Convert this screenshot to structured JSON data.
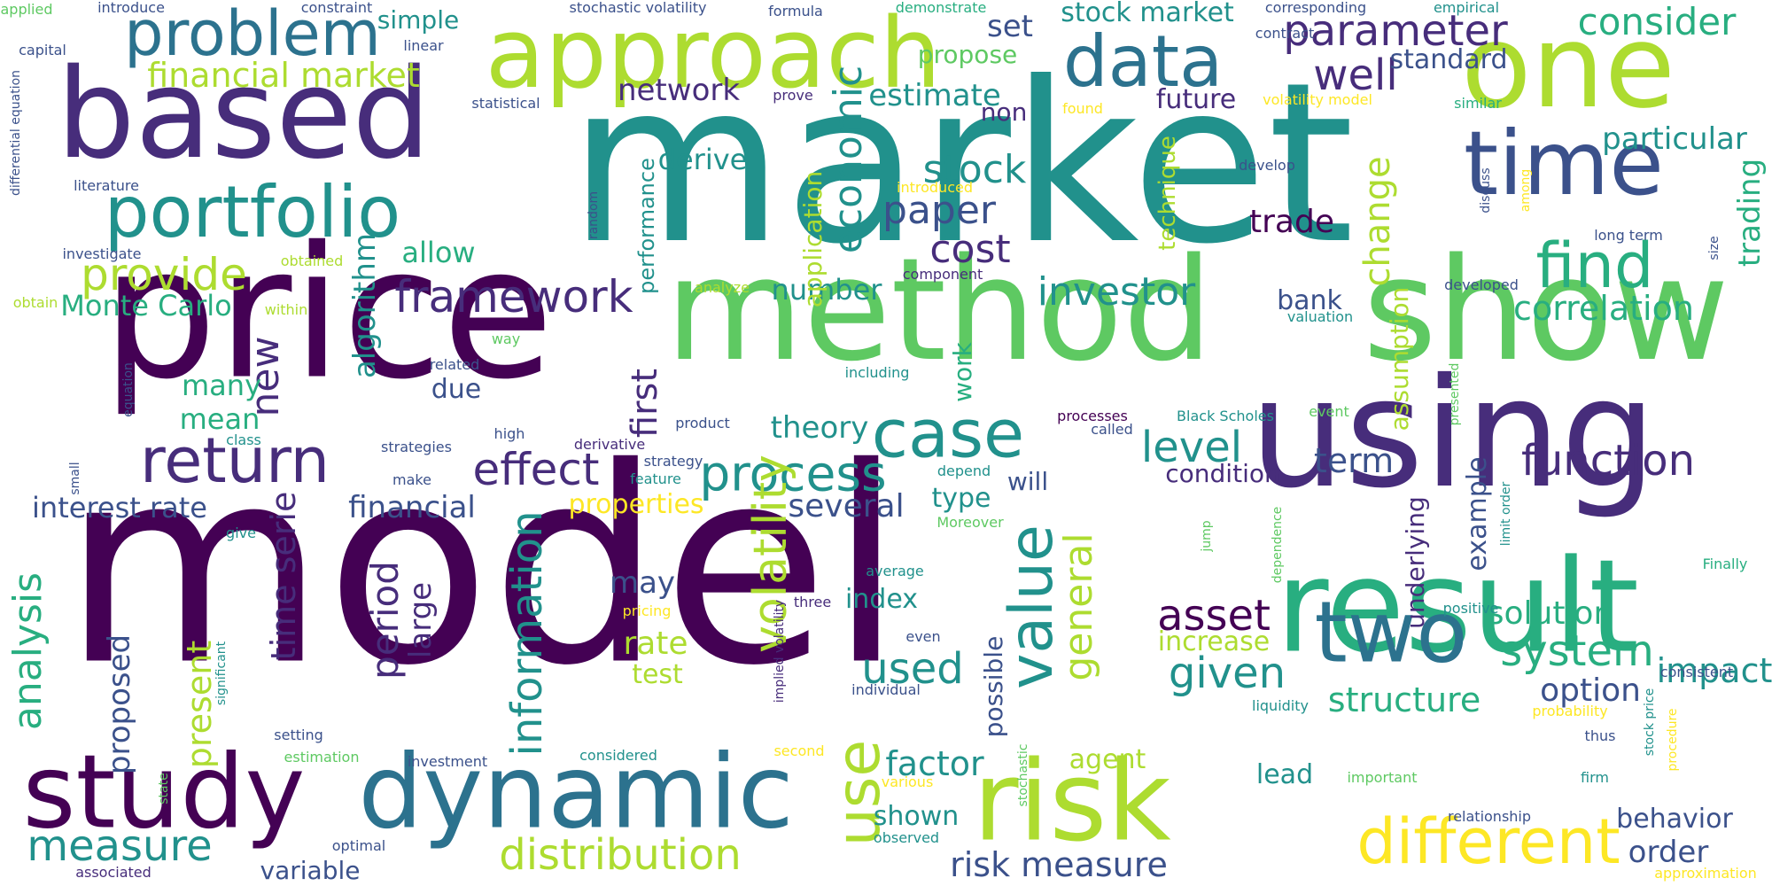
{
  "palette": {
    "background": "#ffffff",
    "deep_purple": "#440154",
    "purple": "#472d7b",
    "indigo": "#3b518b",
    "blue": "#2c728e",
    "teal": "#21918c",
    "green": "#28ae80",
    "light_green": "#5ec962",
    "lime": "#addc30",
    "yellow": "#fde725"
  },
  "words": [
    {
      "text": "model",
      "color": "deep_purple"
    },
    {
      "text": "market",
      "color": "teal"
    },
    {
      "text": "price",
      "color": "deep_purple"
    },
    {
      "text": "method",
      "color": "light_green"
    },
    {
      "text": "show",
      "color": "light_green"
    },
    {
      "text": "using",
      "color": "purple"
    },
    {
      "text": "result",
      "color": "green"
    },
    {
      "text": "based",
      "color": "purple"
    },
    {
      "text": "approach",
      "color": "lime"
    },
    {
      "text": "one",
      "color": "lime"
    },
    {
      "text": "time",
      "color": "indigo"
    },
    {
      "text": "portfolio",
      "color": "teal"
    },
    {
      "text": "problem",
      "color": "blue"
    },
    {
      "text": "data",
      "color": "blue"
    },
    {
      "text": "study",
      "color": "deep_purple"
    },
    {
      "text": "dynamic",
      "color": "blue"
    },
    {
      "text": "risk",
      "color": "lime"
    },
    {
      "text": "two",
      "color": "blue"
    },
    {
      "text": "return",
      "color": "purple"
    },
    {
      "text": "case",
      "color": "teal"
    },
    {
      "text": "different",
      "color": "yellow"
    },
    {
      "text": "value",
      "color": "teal"
    },
    {
      "text": "find",
      "color": "green"
    },
    {
      "text": "use",
      "color": "lime"
    },
    {
      "text": "parameter",
      "color": "purple"
    },
    {
      "text": "consider",
      "color": "green"
    },
    {
      "text": "well",
      "color": "purple"
    },
    {
      "text": "financial market",
      "color": "lime"
    },
    {
      "text": "provide",
      "color": "lime"
    },
    {
      "text": "framework",
      "color": "purple"
    },
    {
      "text": "effect",
      "color": "purple"
    },
    {
      "text": "process",
      "color": "teal"
    },
    {
      "text": "function",
      "color": "purple"
    },
    {
      "text": "volatility",
      "color": "lime"
    },
    {
      "text": "information",
      "color": "teal"
    },
    {
      "text": "distribution",
      "color": "lime"
    },
    {
      "text": "measure",
      "color": "teal"
    },
    {
      "text": "asset",
      "color": "deep_purple"
    },
    {
      "text": "system",
      "color": "green"
    },
    {
      "text": "stock",
      "color": "teal"
    },
    {
      "text": "paper",
      "color": "indigo"
    },
    {
      "text": "cost",
      "color": "purple"
    },
    {
      "text": "economic",
      "color": "teal"
    },
    {
      "text": "new",
      "color": "purple"
    },
    {
      "text": "investor",
      "color": "teal"
    },
    {
      "text": "correlation",
      "color": "green"
    },
    {
      "text": "level",
      "color": "teal"
    },
    {
      "text": "general",
      "color": "lime"
    },
    {
      "text": "given",
      "color": "teal"
    },
    {
      "text": "structure",
      "color": "green"
    },
    {
      "text": "solution",
      "color": "green"
    },
    {
      "text": "impact",
      "color": "teal"
    },
    {
      "text": "option",
      "color": "indigo"
    },
    {
      "text": "factor",
      "color": "teal"
    },
    {
      "text": "used",
      "color": "teal"
    },
    {
      "text": "analysis",
      "color": "green"
    },
    {
      "text": "time serie",
      "color": "purple"
    },
    {
      "text": "period",
      "color": "purple"
    },
    {
      "text": "interest rate",
      "color": "indigo"
    },
    {
      "text": "financial",
      "color": "indigo"
    },
    {
      "text": "risk measure",
      "color": "indigo"
    },
    {
      "text": "stock market",
      "color": "teal"
    },
    {
      "text": "estimate",
      "color": "teal"
    },
    {
      "text": "particular",
      "color": "teal"
    },
    {
      "text": "trading",
      "color": "green"
    },
    {
      "text": "change",
      "color": "lime"
    },
    {
      "text": "trade",
      "color": "deep_purple"
    },
    {
      "text": "term",
      "color": "indigo"
    },
    {
      "text": "theory",
      "color": "teal"
    },
    {
      "text": "first",
      "color": "purple"
    },
    {
      "text": "present",
      "color": "lime"
    },
    {
      "text": "proposed",
      "color": "indigo"
    },
    {
      "text": "large",
      "color": "purple"
    },
    {
      "text": "algorithm",
      "color": "teal"
    },
    {
      "text": "network",
      "color": "purple"
    },
    {
      "text": "set",
      "color": "indigo"
    },
    {
      "text": "standard",
      "color": "indigo"
    },
    {
      "text": "allow",
      "color": "green"
    },
    {
      "text": "Monte Carlo",
      "color": "green"
    },
    {
      "text": "many",
      "color": "green"
    },
    {
      "text": "mean",
      "color": "green"
    },
    {
      "text": "due",
      "color": "indigo"
    },
    {
      "text": "simple",
      "color": "teal"
    },
    {
      "text": "number",
      "color": "teal"
    },
    {
      "text": "bank",
      "color": "indigo"
    },
    {
      "text": "application",
      "color": "lime"
    },
    {
      "text": "derive",
      "color": "teal"
    },
    {
      "text": "propose",
      "color": "light_green"
    },
    {
      "text": "future",
      "color": "purple"
    },
    {
      "text": "non",
      "color": "purple"
    },
    {
      "text": "properties",
      "color": "yellow"
    },
    {
      "text": "several",
      "color": "indigo"
    },
    {
      "text": "type",
      "color": "teal"
    },
    {
      "text": "may",
      "color": "indigo"
    },
    {
      "text": "rate",
      "color": "lime"
    },
    {
      "text": "test",
      "color": "lime"
    },
    {
      "text": "index",
      "color": "teal"
    },
    {
      "text": "condition",
      "color": "purple"
    },
    {
      "text": "example",
      "color": "indigo"
    },
    {
      "text": "underlying",
      "color": "purple"
    },
    {
      "text": "assumption",
      "color": "lime"
    },
    {
      "text": "increase",
      "color": "lime"
    },
    {
      "text": "agent",
      "color": "lime"
    },
    {
      "text": "shown",
      "color": "teal"
    },
    {
      "text": "lead",
      "color": "teal"
    },
    {
      "text": "behavior",
      "color": "indigo"
    },
    {
      "text": "order",
      "color": "indigo"
    },
    {
      "text": "variable",
      "color": "indigo"
    },
    {
      "text": "work",
      "color": "green"
    },
    {
      "text": "will",
      "color": "indigo"
    },
    {
      "text": "possible",
      "color": "indigo"
    },
    {
      "text": "technique",
      "color": "lime"
    },
    {
      "text": "performance",
      "color": "teal"
    },
    {
      "text": "applied",
      "color": "light_green"
    },
    {
      "text": "introduce",
      "color": "indigo"
    },
    {
      "text": "constraint",
      "color": "indigo"
    },
    {
      "text": "stochastic volatility",
      "color": "indigo"
    },
    {
      "text": "formula",
      "color": "indigo"
    },
    {
      "text": "demonstrate",
      "color": "green"
    },
    {
      "text": "corresponding",
      "color": "indigo"
    },
    {
      "text": "empirical",
      "color": "teal"
    },
    {
      "text": "capital",
      "color": "indigo"
    },
    {
      "text": "linear",
      "color": "indigo"
    },
    {
      "text": "contract",
      "color": "indigo"
    },
    {
      "text": "differential equation",
      "color": "indigo"
    },
    {
      "text": "statistical",
      "color": "indigo"
    },
    {
      "text": "prove",
      "color": "purple"
    },
    {
      "text": "found",
      "color": "yellow"
    },
    {
      "text": "volatility model",
      "color": "yellow"
    },
    {
      "text": "similar",
      "color": "green"
    },
    {
      "text": "literature",
      "color": "indigo"
    },
    {
      "text": "random",
      "color": "indigo"
    },
    {
      "text": "investigate",
      "color": "indigo"
    },
    {
      "text": "obtained",
      "color": "lime"
    },
    {
      "text": "component",
      "color": "purple"
    },
    {
      "text": "develop",
      "color": "indigo"
    },
    {
      "text": "introduced",
      "color": "yellow"
    },
    {
      "text": "among",
      "color": "yellow"
    },
    {
      "text": "discuss",
      "color": "indigo"
    },
    {
      "text": "size",
      "color": "indigo"
    },
    {
      "text": "long term",
      "color": "indigo"
    },
    {
      "text": "developed",
      "color": "indigo"
    },
    {
      "text": "valuation",
      "color": "teal"
    },
    {
      "text": "obtain",
      "color": "lime"
    },
    {
      "text": "within",
      "color": "lime"
    },
    {
      "text": "analyze",
      "color": "lime"
    },
    {
      "text": "way",
      "color": "light_green"
    },
    {
      "text": "related",
      "color": "indigo"
    },
    {
      "text": "including",
      "color": "teal"
    },
    {
      "text": "equation",
      "color": "indigo"
    },
    {
      "text": "presented",
      "color": "light_green"
    },
    {
      "text": "event",
      "color": "light_green"
    },
    {
      "text": "class",
      "color": "teal"
    },
    {
      "text": "high",
      "color": "indigo"
    },
    {
      "text": "strategies",
      "color": "indigo"
    },
    {
      "text": "product",
      "color": "indigo"
    },
    {
      "text": "processes",
      "color": "deep_purple"
    },
    {
      "text": "Black Scholes",
      "color": "teal"
    },
    {
      "text": "called",
      "color": "indigo"
    },
    {
      "text": "small",
      "color": "indigo"
    },
    {
      "text": "make",
      "color": "indigo"
    },
    {
      "text": "derivative",
      "color": "purple"
    },
    {
      "text": "strategy",
      "color": "indigo"
    },
    {
      "text": "feature",
      "color": "teal"
    },
    {
      "text": "depend",
      "color": "teal"
    },
    {
      "text": "Moreover",
      "color": "light_green"
    },
    {
      "text": "give",
      "color": "teal"
    },
    {
      "text": "dependence",
      "color": "light_green"
    },
    {
      "text": "jump",
      "color": "light_green"
    },
    {
      "text": "limit order",
      "color": "teal"
    },
    {
      "text": "Finally",
      "color": "green"
    },
    {
      "text": "significant",
      "color": "teal"
    },
    {
      "text": "implied volatility",
      "color": "purple"
    },
    {
      "text": "three",
      "color": "purple"
    },
    {
      "text": "average",
      "color": "teal"
    },
    {
      "text": "pricing",
      "color": "yellow"
    },
    {
      "text": "even",
      "color": "indigo"
    },
    {
      "text": "positive",
      "color": "teal"
    },
    {
      "text": "consistent",
      "color": "indigo"
    },
    {
      "text": "stock price",
      "color": "teal"
    },
    {
      "text": "procedure",
      "color": "yellow"
    },
    {
      "text": "liquidity",
      "color": "teal"
    },
    {
      "text": "probability",
      "color": "yellow"
    },
    {
      "text": "thus",
      "color": "indigo"
    },
    {
      "text": "setting",
      "color": "indigo"
    },
    {
      "text": "estimation",
      "color": "light_green"
    },
    {
      "text": "investment",
      "color": "indigo"
    },
    {
      "text": "considered",
      "color": "teal"
    },
    {
      "text": "second",
      "color": "yellow"
    },
    {
      "text": "various",
      "color": "yellow"
    },
    {
      "text": "individual",
      "color": "indigo"
    },
    {
      "text": "important",
      "color": "light_green"
    },
    {
      "text": "firm",
      "color": "teal"
    },
    {
      "text": "stochastic",
      "color": "light_green"
    },
    {
      "text": "state",
      "color": "light_green"
    },
    {
      "text": "optimal",
      "color": "indigo"
    },
    {
      "text": "observed",
      "color": "teal"
    },
    {
      "text": "relationship",
      "color": "indigo"
    },
    {
      "text": "associated",
      "color": "purple"
    },
    {
      "text": "approximation",
      "color": "yellow"
    }
  ]
}
